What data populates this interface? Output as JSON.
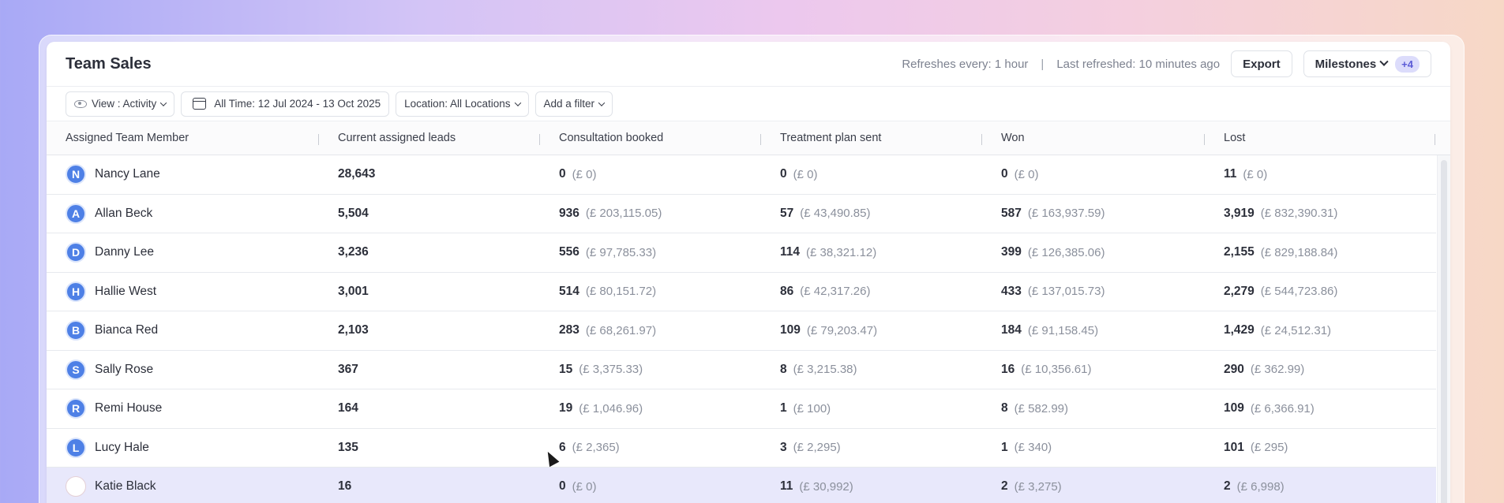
{
  "header": {
    "title": "Team Sales",
    "refresh_interval": "Refreshes every: 1 hour",
    "separator": "|",
    "last_refreshed": "Last refreshed: 10 minutes ago",
    "export_label": "Export",
    "milestones_label": "Milestones",
    "milestones_badge": "+4"
  },
  "filters": {
    "view": "View : Activity",
    "date_range": "All Time: 12 Jul 2024 - 13 Oct 2025",
    "location": "Location: All Locations",
    "add_filter": "Add a filter"
  },
  "table": {
    "columns": [
      "Assigned Team Member",
      "Current assigned leads",
      "Consultation booked",
      "Treatment plan sent",
      "Won",
      "Lost"
    ],
    "rows": [
      {
        "initial": "N",
        "name": "Nancy Lane",
        "leads": "28,643",
        "cons": "0",
        "cons_amt": "(£ 0)",
        "plan": "0",
        "plan_amt": "(£ 0)",
        "won": "0",
        "won_amt": "(£ 0)",
        "lost": "11",
        "lost_amt": "(£ 0)"
      },
      {
        "initial": "A",
        "name": "Allan Beck",
        "leads": "5,504",
        "cons": "936",
        "cons_amt": "(£ 203,115.05)",
        "plan": "57",
        "plan_amt": "(£ 43,490.85)",
        "won": "587",
        "won_amt": "(£ 163,937.59)",
        "lost": "3,919",
        "lost_amt": "(£ 832,390.31)"
      },
      {
        "initial": "D",
        "name": "Danny Lee",
        "leads": "3,236",
        "cons": "556",
        "cons_amt": "(£ 97,785.33)",
        "plan": "114",
        "plan_amt": "(£ 38,321.12)",
        "won": "399",
        "won_amt": "(£ 126,385.06)",
        "lost": "2,155",
        "lost_amt": "(£ 829,188.84)"
      },
      {
        "initial": "H",
        "name": "Hallie West",
        "leads": "3,001",
        "cons": "514",
        "cons_amt": "(£ 80,151.72)",
        "plan": "86",
        "plan_amt": "(£ 42,317.26)",
        "won": "433",
        "won_amt": "(£ 137,015.73)",
        "lost": "2,279",
        "lost_amt": "(£ 544,723.86)"
      },
      {
        "initial": "B",
        "name": "Bianca Red",
        "leads": "2,103",
        "cons": "283",
        "cons_amt": "(£ 68,261.97)",
        "plan": "109",
        "plan_amt": "(£ 79,203.47)",
        "won": "184",
        "won_amt": "(£ 91,158.45)",
        "lost": "1,429",
        "lost_amt": "(£ 24,512.31)"
      },
      {
        "initial": "S",
        "name": "Sally Rose",
        "leads": "367",
        "cons": "15",
        "cons_amt": "(£ 3,375.33)",
        "plan": "8",
        "plan_amt": "(£ 3,215.38)",
        "won": "16",
        "won_amt": "(£ 10,356.61)",
        "lost": "290",
        "lost_amt": "(£ 362.99)"
      },
      {
        "initial": "R",
        "name": "Remi House",
        "leads": "164",
        "cons": "19",
        "cons_amt": "(£ 1,046.96)",
        "plan": "1",
        "plan_amt": "(£ 100)",
        "won": "8",
        "won_amt": "(£ 582.99)",
        "lost": "109",
        "lost_amt": "(£ 6,366.91)"
      },
      {
        "initial": "L",
        "name": "Lucy Hale",
        "leads": "135",
        "cons": "6",
        "cons_amt": "(£ 2,365)",
        "plan": "3",
        "plan_amt": "(£ 2,295)",
        "won": "1",
        "won_amt": "(£ 340)",
        "lost": "101",
        "lost_amt": "(£ 295)"
      },
      {
        "initial": "",
        "name": "Katie Black",
        "leads": "16",
        "cons": "0",
        "cons_amt": "(£ 0)",
        "plan": "11",
        "plan_amt": "(£ 30,992)",
        "won": "2",
        "won_amt": "(£ 3,275)",
        "lost": "2",
        "lost_amt": "(£ 6,998)"
      }
    ]
  },
  "colors": {
    "accent": "#5b5bd6",
    "avatar": "#4e80e6",
    "highlight_row": "#e8e8fb"
  }
}
